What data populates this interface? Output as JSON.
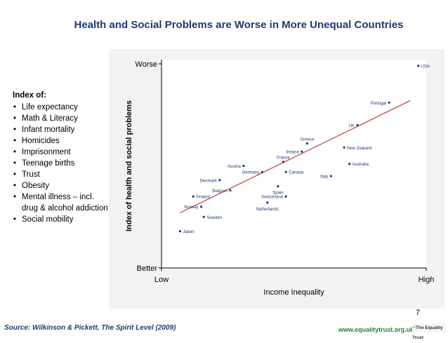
{
  "slide": {
    "title": "Health and Social Problems are Worse in More Unequal Countries",
    "slide_number": "7",
    "source": "Source: Wilkinson & Pickett, The Spirit Level (2009)",
    "website": "www.equalitytrust.org.uk",
    "logo_text": "The Equality Trust",
    "logo_mark": "™"
  },
  "index": {
    "heading": "Index of:",
    "items": [
      "Life expectancy",
      "Math & Literacy",
      "Infant mortality",
      "Homicides",
      "Imprisonment",
      "Teenage births",
      "Trust",
      "Obesity",
      "Mental illness – incl. drug & alcohol addiction",
      "Social mobility"
    ]
  },
  "colors": {
    "title": "#1f3a6e",
    "point": "#1f3a6e",
    "country_label": "#1f3a6e",
    "trend_line": "#c0504d",
    "axis": "#000000",
    "chart_background": "#f2f2f2",
    "source_text": "#1f3a6e",
    "website_text": "#2e7d32"
  },
  "chart_data": {
    "type": "scatter",
    "xlabel": "Income Inequality",
    "ylabel": "Index of health and social problems",
    "x_tick_labels": [
      "Low",
      "High"
    ],
    "y_tick_labels": [
      "Worse",
      "Better"
    ],
    "xlim": [
      0,
      100
    ],
    "ylim": [
      0,
      100
    ],
    "grid": false,
    "points": [
      {
        "label": "USA",
        "x": 97,
        "y": 99
      },
      {
        "label": "Portugal",
        "x": 86,
        "y": 81
      },
      {
        "label": "UK",
        "x": 74,
        "y": 70
      },
      {
        "label": "New Zealand",
        "x": 69,
        "y": 59
      },
      {
        "label": "Greece",
        "x": 55,
        "y": 61
      },
      {
        "label": "Ireland",
        "x": 53,
        "y": 57
      },
      {
        "label": "France",
        "x": 46,
        "y": 52
      },
      {
        "label": "Australia",
        "x": 71,
        "y": 51
      },
      {
        "label": "Canada",
        "x": 47,
        "y": 47
      },
      {
        "label": "Italy",
        "x": 64,
        "y": 45
      },
      {
        "label": "Austria",
        "x": 31,
        "y": 50
      },
      {
        "label": "Germany",
        "x": 38,
        "y": 47
      },
      {
        "label": "Denmark",
        "x": 22,
        "y": 43
      },
      {
        "label": "Spain",
        "x": 44,
        "y": 40
      },
      {
        "label": "Belgium",
        "x": 26,
        "y": 38
      },
      {
        "label": "Switzerland",
        "x": 47,
        "y": 35
      },
      {
        "label": "Finland",
        "x": 12,
        "y": 35
      },
      {
        "label": "Netherlands",
        "x": 40,
        "y": 32
      },
      {
        "label": "Norway",
        "x": 15,
        "y": 30
      },
      {
        "label": "Sweden",
        "x": 16,
        "y": 25
      },
      {
        "label": "Japan",
        "x": 7,
        "y": 18
      }
    ],
    "trend_line": {
      "x": [
        7,
        94
      ],
      "y": [
        27,
        82
      ]
    }
  }
}
